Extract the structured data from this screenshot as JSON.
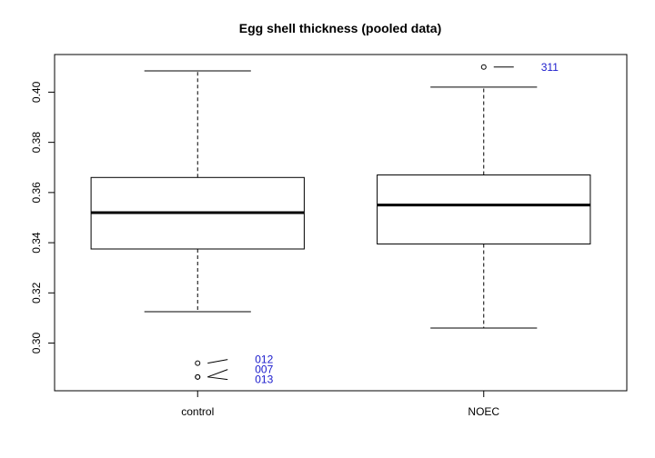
{
  "chart_data": {
    "type": "boxplot",
    "title": "Egg shell thickness (pooled data)",
    "xlabel": "",
    "ylabel": "",
    "ylim": [
      0.281,
      0.415
    ],
    "y_ticks": [
      "0.30",
      "0.32",
      "0.34",
      "0.36",
      "0.38",
      "0.40"
    ],
    "grid": false,
    "categories": [
      "control",
      "NOEC"
    ],
    "boxes": [
      {
        "name": "control",
        "whisker_low": 0.3125,
        "q1": 0.3375,
        "median": 0.352,
        "q3": 0.366,
        "whisker_high": 0.4085,
        "outliers": [
          {
            "value": 0.292,
            "label": "012"
          },
          {
            "value": 0.2865,
            "label": "007"
          },
          {
            "value": 0.2865,
            "label": "013"
          }
        ]
      },
      {
        "name": "NOEC",
        "whisker_low": 0.306,
        "q1": 0.3395,
        "median": 0.355,
        "q3": 0.367,
        "whisker_high": 0.402,
        "outliers": [
          {
            "value": 0.41,
            "label": "311"
          }
        ]
      }
    ],
    "colors": {
      "box": "#000000",
      "outlier_label": "#1a1acc"
    }
  }
}
